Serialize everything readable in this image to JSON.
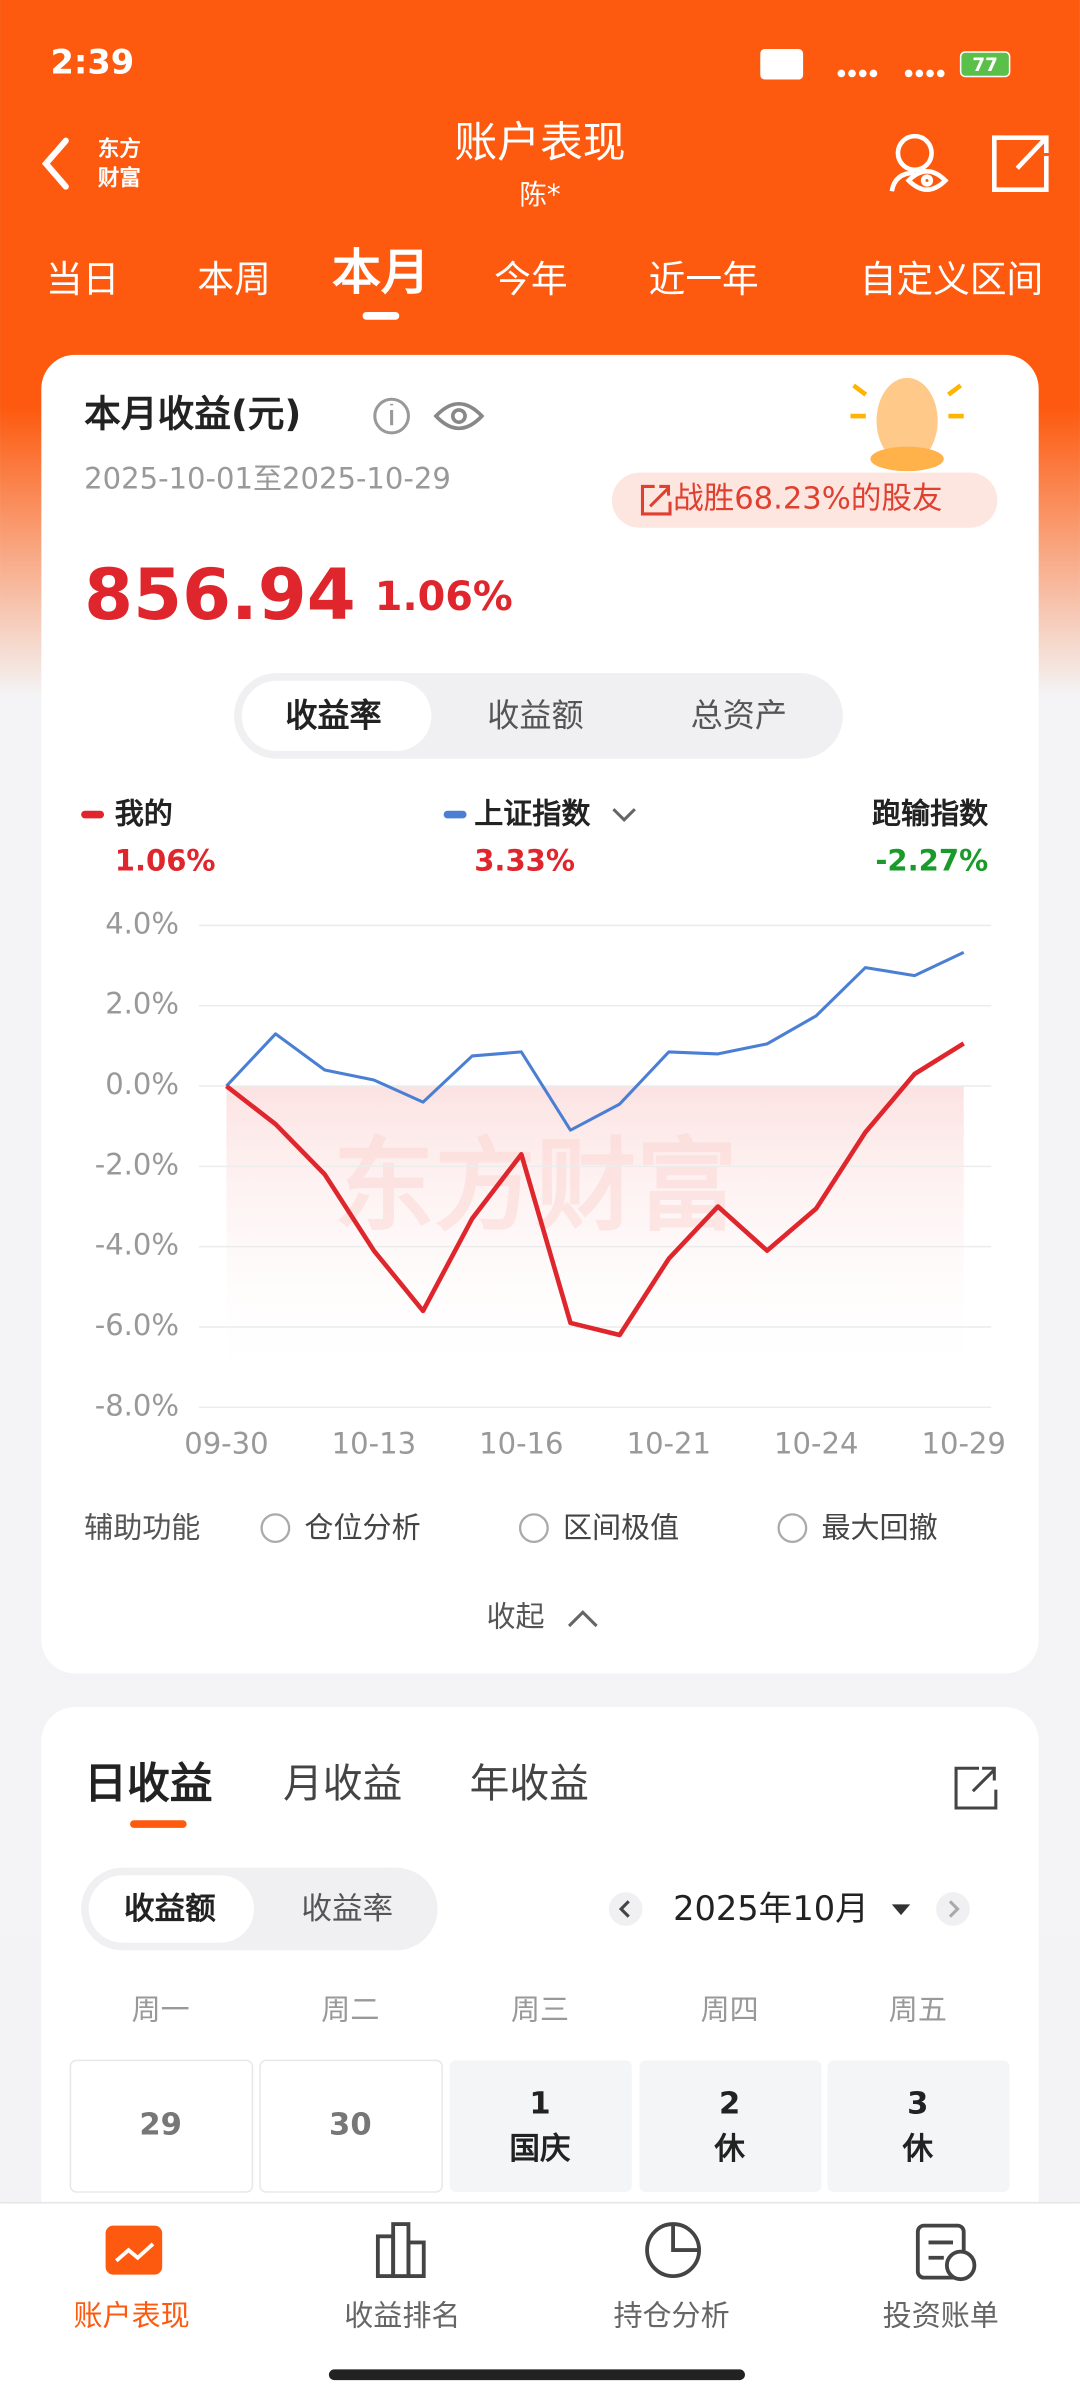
{
  "status_bar": {
    "time": "2:39",
    "battery": "77"
  },
  "header": {
    "logo": [
      "东方",
      "财富"
    ],
    "title": "账户表现",
    "subtitle": "陈*"
  },
  "tabs": [
    "当日",
    "本周",
    "本月",
    "今年",
    "近一年",
    "自定义区间"
  ],
  "active_tab": 2,
  "summary": {
    "title": "本月收益(元)",
    "date_range": "2025-10-01至2025-10-29",
    "badge": "战胜68.23%的股友",
    "amount": "856.94",
    "rate": "1.06%"
  },
  "segment": [
    "收益率",
    "收益额",
    "总资产"
  ],
  "chart_data": {
    "type": "line",
    "categories": [
      "09-30",
      null,
      null,
      "10-13",
      null,
      null,
      "10-16",
      null,
      null,
      "10-21",
      null,
      null,
      "10-24",
      null,
      null,
      "10-29"
    ],
    "series": [
      {
        "name": "我的",
        "color": "#e0262d",
        "values": [
          0,
          -0.95,
          -2.2,
          -4.1,
          -5.6,
          -3.3,
          -1.7,
          -5.9,
          -6.2,
          -4.3,
          -3.0,
          -4.1,
          -3.05,
          -1.15,
          0.3,
          1.06
        ]
      },
      {
        "name": "上证指数",
        "color": "#4a7fd4",
        "values": [
          0,
          1.3,
          0.4,
          0.15,
          -0.4,
          0.75,
          0.85,
          -1.1,
          -0.45,
          0.85,
          0.8,
          1.05,
          1.75,
          2.95,
          2.75,
          3.33
        ]
      }
    ],
    "legend_values": [
      "1.06%",
      "3.33%"
    ],
    "gap": {
      "name": "跑输指数",
      "value": "-2.27%"
    },
    "watermark": "东方财富",
    "ylim": [
      -8,
      4
    ],
    "yticks": [
      {
        "value": 4,
        "label": "4.0%"
      },
      {
        "value": 2,
        "label": "2.0%"
      },
      {
        "value": 0,
        "label": "0.0%"
      },
      {
        "value": -2,
        "label": "-2.0%"
      },
      {
        "value": -4,
        "label": "-4.0%"
      },
      {
        "value": -6,
        "label": "-6.0%"
      },
      {
        "value": -8,
        "label": "-8.0%"
      }
    ],
    "grid": true
  },
  "aux": {
    "label": "辅助功能",
    "options": [
      "仓位分析",
      "区间极值",
      "最大回撤"
    ]
  },
  "collapse": "收起",
  "daily": {
    "tabs": [
      "日收益",
      "月收益",
      "年收益"
    ],
    "toggle": [
      "收益额",
      "收益率"
    ],
    "month": "2025年10月",
    "weekdays": [
      "周一",
      "周二",
      "周三",
      "周四",
      "周五"
    ],
    "days": [
      {
        "day": "29"
      },
      {
        "day": "30"
      },
      {
        "day": "1",
        "note": "国庆"
      },
      {
        "day": "2",
        "note": "休"
      },
      {
        "day": "3",
        "note": "休"
      }
    ]
  },
  "nav": [
    "账户表现",
    "收益排名",
    "持仓分析",
    "投资账单"
  ]
}
